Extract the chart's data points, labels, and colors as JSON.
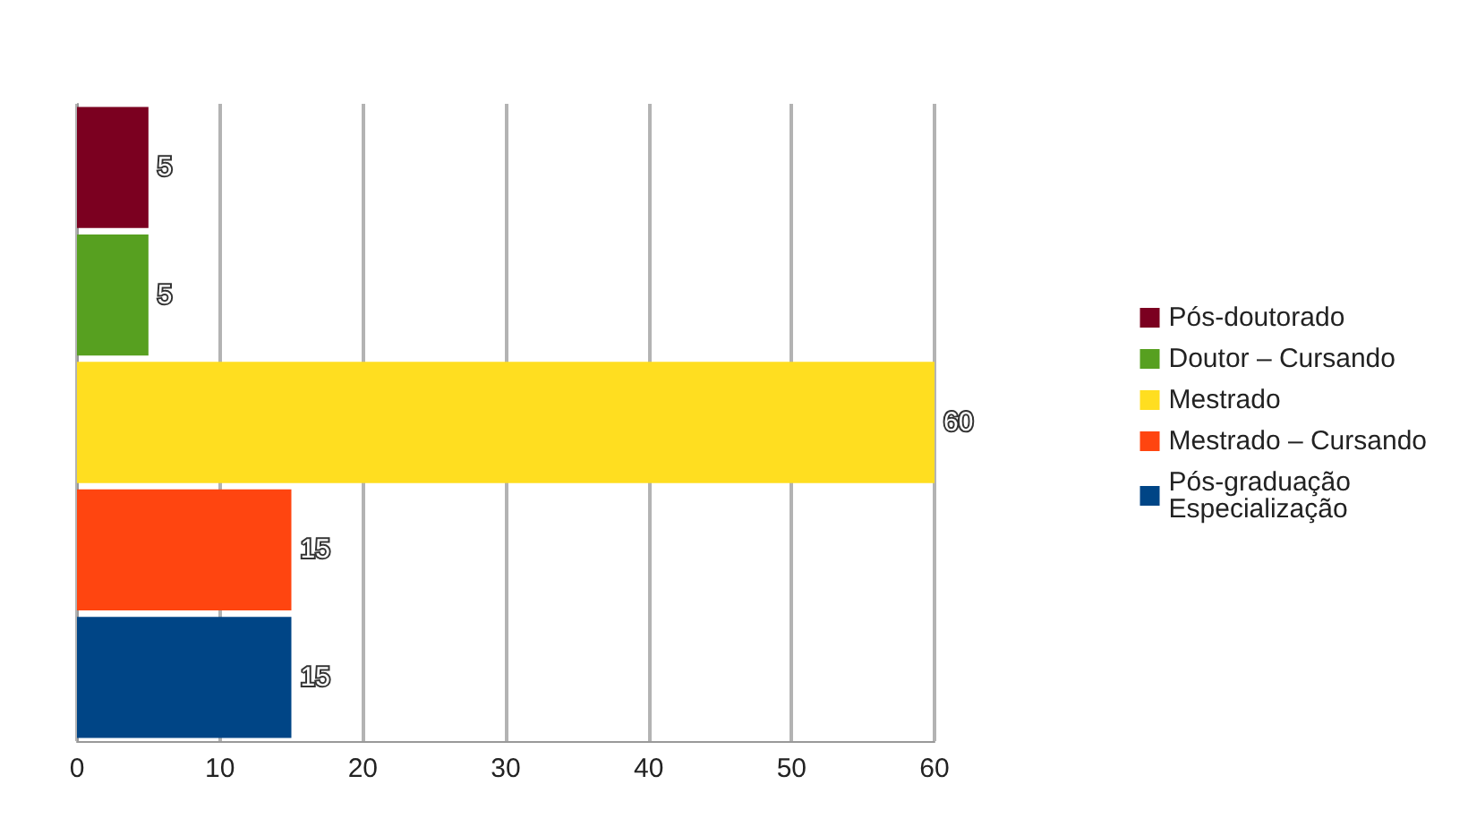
{
  "chart_data": {
    "type": "bar",
    "orientation": "horizontal",
    "stacked": true,
    "categories": [
      null,
      null,
      null,
      null,
      null
    ],
    "series": [
      {
        "name": "Pós-doutorado",
        "color": "#7b0020",
        "values": [
          5,
          null,
          null,
          null,
          null
        ]
      },
      {
        "name": "Doutor – Cursando",
        "color": "#57a020",
        "values": [
          null,
          5,
          null,
          null,
          null
        ]
      },
      {
        "name": "Mestrado",
        "color": "#ffde20",
        "values": [
          null,
          null,
          60,
          null,
          null
        ]
      },
      {
        "name": "Mestrado – Cursando",
        "color": "#ff4510",
        "values": [
          null,
          null,
          null,
          15,
          null
        ]
      },
      {
        "name": "Pós-graduação Especialização",
        "color": "#004586",
        "values": [
          null,
          null,
          null,
          null,
          15
        ]
      }
    ],
    "xlim": [
      0,
      60
    ],
    "xticks": [
      0,
      10,
      20,
      30,
      40,
      50,
      60
    ],
    "grid": "x",
    "legend": "right",
    "tick_labels": "x",
    "data_labels": true
  }
}
